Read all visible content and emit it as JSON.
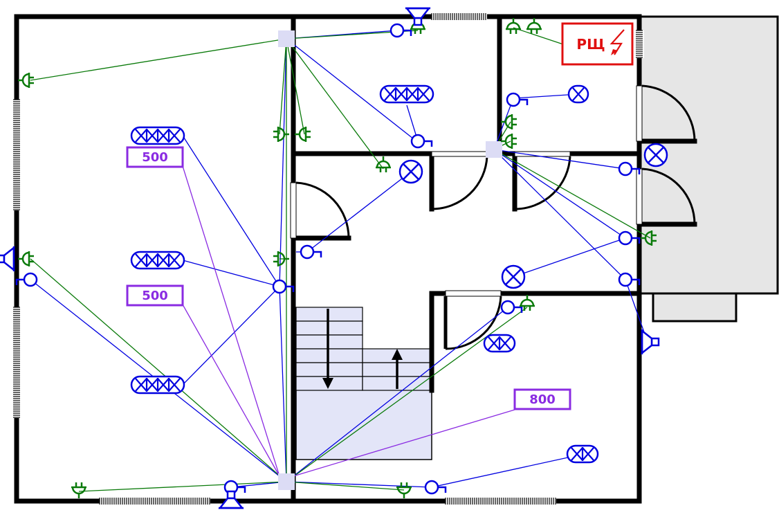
{
  "panel": {
    "label": "РЩ",
    "bolt": "lightning-bolt-icon"
  },
  "power_labels": [
    {
      "id": "label-500-a",
      "text": "500"
    },
    {
      "id": "label-500-b",
      "text": "500"
    },
    {
      "id": "label-800",
      "text": "800"
    }
  ],
  "colors": {
    "wall": "#000000",
    "lighting": "#0000e0",
    "socket": "#0a7a0a",
    "power_label": "#8a2be2",
    "panel": "#e01010",
    "junction_box": "#dcdcf5",
    "stair_fill": "#e3e5f8",
    "annex_fill": "#e6e6e6"
  },
  "icons": {
    "lamp": "ceiling-lamp-cross-icon",
    "fixture": "linear-fixture-icon",
    "switch": "switch-icon",
    "socket": "power-socket-icon",
    "speaker": "speaker-icon",
    "junction": "junction-box-icon",
    "arrow": "stair-direction-arrow-icon"
  }
}
